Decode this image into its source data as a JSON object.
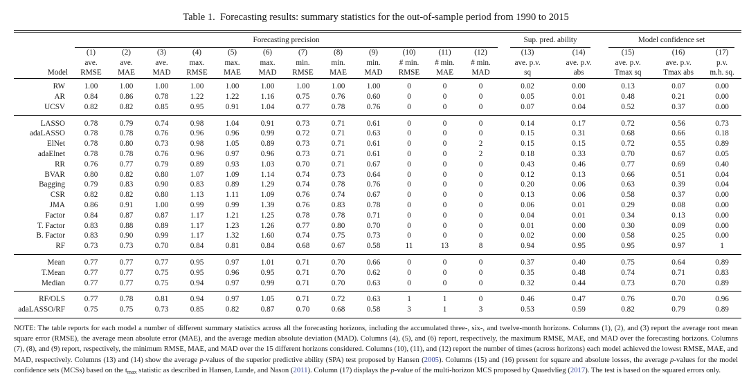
{
  "title": "Table 1.  Forecasting results: summary statistics for the out-of-sample period from 1990 to 2015",
  "colors": {
    "citation": "#3647a3",
    "rule": "#000000",
    "text": "#1b1b1b"
  },
  "table": {
    "model_header": "Model",
    "groups": [
      {
        "label": "Forecasting precision",
        "span": 12
      },
      {
        "label": "Sup. pred. ability",
        "span": 2
      },
      {
        "label": "Model confidence set",
        "span": 3
      }
    ],
    "columns": [
      {
        "num": "(1)",
        "l1": "ave.",
        "l2": "RMSE"
      },
      {
        "num": "(2)",
        "l1": "ave.",
        "l2": "MAE"
      },
      {
        "num": "(3)",
        "l1": "ave.",
        "l2": "MAD"
      },
      {
        "num": "(4)",
        "l1": "max.",
        "l2": "RMSE"
      },
      {
        "num": "(5)",
        "l1": "max.",
        "l2": "MAE"
      },
      {
        "num": "(6)",
        "l1": "max.",
        "l2": "MAD"
      },
      {
        "num": "(7)",
        "l1": "min.",
        "l2": "RMSE"
      },
      {
        "num": "(8)",
        "l1": "min.",
        "l2": "MAE"
      },
      {
        "num": "(9)",
        "l1": "min.",
        "l2": "MAD"
      },
      {
        "num": "(10)",
        "l1": "# min.",
        "l2": "RMSE"
      },
      {
        "num": "(11)",
        "l1": "# min.",
        "l2": "MAE"
      },
      {
        "num": "(12)",
        "l1": "# min.",
        "l2": "MAD"
      },
      {
        "num": "(13)",
        "l1": "ave. p.v.",
        "l2": "sq"
      },
      {
        "num": "(14)",
        "l1": "ave. p.v.",
        "l2": "abs"
      },
      {
        "num": "(15)",
        "l1": "ave. p.v.",
        "l2": "Tmax sq"
      },
      {
        "num": "(16)",
        "l1": "ave. p.v.",
        "l2": "Tmax abs"
      },
      {
        "num": "(17)",
        "l1": "p.v.",
        "l2": "m.h. sq."
      }
    ],
    "row_groups": [
      {
        "rows": [
          {
            "model": "RW",
            "values": [
              "1.00",
              "1.00",
              "1.00",
              "1.00",
              "1.00",
              "1.00",
              "1.00",
              "1.00",
              "1.00",
              "0",
              "0",
              "0",
              "0.02",
              "0.00",
              "0.13",
              "0.07",
              "0.00"
            ]
          },
          {
            "model": "AR",
            "values": [
              "0.84",
              "0.86",
              "0.78",
              "1.22",
              "1.22",
              "1.16",
              "0.75",
              "0.76",
              "0.60",
              "0",
              "0",
              "0",
              "0.05",
              "0.01",
              "0.48",
              "0.21",
              "0.00"
            ]
          },
          {
            "model": "UCSV",
            "values": [
              "0.82",
              "0.82",
              "0.85",
              "0.95",
              "0.91",
              "1.04",
              "0.77",
              "0.78",
              "0.76",
              "0",
              "0",
              "0",
              "0.07",
              "0.04",
              "0.52",
              "0.37",
              "0.00"
            ]
          }
        ]
      },
      {
        "rows": [
          {
            "model": "LASSO",
            "values": [
              "0.78",
              "0.79",
              "0.74",
              "0.98",
              "1.04",
              "0.91",
              "0.73",
              "0.71",
              "0.61",
              "0",
              "0",
              "0",
              "0.14",
              "0.17",
              "0.72",
              "0.56",
              "0.73"
            ]
          },
          {
            "model": "adaLASSO",
            "values": [
              "0.78",
              "0.78",
              "0.76",
              "0.96",
              "0.96",
              "0.99",
              "0.72",
              "0.71",
              "0.63",
              "0",
              "0",
              "0",
              "0.15",
              "0.31",
              "0.68",
              "0.66",
              "0.18"
            ]
          },
          {
            "model": "ElNet",
            "values": [
              "0.78",
              "0.80",
              "0.73",
              "0.98",
              "1.05",
              "0.89",
              "0.73",
              "0.71",
              "0.61",
              "0",
              "0",
              "2",
              "0.15",
              "0.15",
              "0.72",
              "0.55",
              "0.89"
            ]
          },
          {
            "model": "adaElnet",
            "values": [
              "0.78",
              "0.78",
              "0.76",
              "0.96",
              "0.97",
              "0.96",
              "0.73",
              "0.71",
              "0.61",
              "0",
              "0",
              "2",
              "0.18",
              "0.33",
              "0.70",
              "0.67",
              "0.05"
            ]
          },
          {
            "model": "RR",
            "values": [
              "0.76",
              "0.77",
              "0.79",
              "0.89",
              "0.93",
              "1.03",
              "0.70",
              "0.71",
              "0.67",
              "0",
              "0",
              "0",
              "0.43",
              "0.46",
              "0.77",
              "0.69",
              "0.40"
            ]
          },
          {
            "model": "BVAR",
            "values": [
              "0.80",
              "0.82",
              "0.80",
              "1.07",
              "1.09",
              "1.14",
              "0.74",
              "0.73",
              "0.64",
              "0",
              "0",
              "0",
              "0.12",
              "0.13",
              "0.66",
              "0.51",
              "0.04"
            ]
          },
          {
            "model": "Bagging",
            "values": [
              "0.79",
              "0.83",
              "0.90",
              "0.83",
              "0.89",
              "1.29",
              "0.74",
              "0.78",
              "0.76",
              "0",
              "0",
              "0",
              "0.20",
              "0.06",
              "0.63",
              "0.39",
              "0.04"
            ]
          },
          {
            "model": "CSR",
            "values": [
              "0.82",
              "0.82",
              "0.80",
              "1.13",
              "1.11",
              "1.09",
              "0.76",
              "0.74",
              "0.67",
              "0",
              "0",
              "0",
              "0.13",
              "0.06",
              "0.58",
              "0.37",
              "0.00"
            ]
          },
          {
            "model": "JMA",
            "values": [
              "0.86",
              "0.91",
              "1.00",
              "0.99",
              "0.99",
              "1.39",
              "0.76",
              "0.83",
              "0.78",
              "0",
              "0",
              "0",
              "0.06",
              "0.01",
              "0.29",
              "0.08",
              "0.00"
            ]
          },
          {
            "model": "Factor",
            "values": [
              "0.84",
              "0.87",
              "0.87",
              "1.17",
              "1.21",
              "1.25",
              "0.78",
              "0.78",
              "0.71",
              "0",
              "0",
              "0",
              "0.04",
              "0.01",
              "0.34",
              "0.13",
              "0.00"
            ]
          },
          {
            "model": "T. Factor",
            "values": [
              "0.83",
              "0.88",
              "0.89",
              "1.17",
              "1.23",
              "1.26",
              "0.77",
              "0.80",
              "0.70",
              "0",
              "0",
              "0",
              "0.01",
              "0.00",
              "0.30",
              "0.09",
              "0.00"
            ]
          },
          {
            "model": "B. Factor",
            "values": [
              "0.83",
              "0.90",
              "0.99",
              "1.17",
              "1.32",
              "1.60",
              "0.74",
              "0.75",
              "0.73",
              "0",
              "0",
              "0",
              "0.02",
              "0.00",
              "0.58",
              "0.25",
              "0.00"
            ]
          },
          {
            "model": "RF",
            "values": [
              "0.73",
              "0.73",
              "0.70",
              "0.84",
              "0.81",
              "0.84",
              "0.68",
              "0.67",
              "0.58",
              "11",
              "13",
              "8",
              "0.94",
              "0.95",
              "0.95",
              "0.97",
              "1"
            ]
          }
        ]
      },
      {
        "rows": [
          {
            "model": "Mean",
            "values": [
              "0.77",
              "0.77",
              "0.77",
              "0.95",
              "0.97",
              "1.01",
              "0.71",
              "0.70",
              "0.66",
              "0",
              "0",
              "0",
              "0.37",
              "0.40",
              "0.75",
              "0.64",
              "0.89"
            ]
          },
          {
            "model": "T.Mean",
            "values": [
              "0.77",
              "0.77",
              "0.75",
              "0.95",
              "0.96",
              "0.95",
              "0.71",
              "0.70",
              "0.62",
              "0",
              "0",
              "0",
              "0.35",
              "0.48",
              "0.74",
              "0.71",
              "0.83"
            ]
          },
          {
            "model": "Median",
            "values": [
              "0.77",
              "0.77",
              "0.75",
              "0.94",
              "0.97",
              "0.99",
              "0.71",
              "0.70",
              "0.63",
              "0",
              "0",
              "0",
              "0.32",
              "0.44",
              "0.73",
              "0.70",
              "0.89"
            ]
          }
        ]
      },
      {
        "rows": [
          {
            "model": "RF/OLS",
            "values": [
              "0.77",
              "0.78",
              "0.81",
              "0.94",
              "0.97",
              "1.05",
              "0.71",
              "0.72",
              "0.63",
              "1",
              "1",
              "0",
              "0.46",
              "0.47",
              "0.76",
              "0.70",
              "0.96"
            ]
          },
          {
            "model": "adaLASSO/RF",
            "values": [
              "0.75",
              "0.75",
              "0.73",
              "0.85",
              "0.82",
              "0.87",
              "0.70",
              "0.68",
              "0.58",
              "3",
              "1",
              "3",
              "0.53",
              "0.59",
              "0.82",
              "0.79",
              "0.89"
            ]
          }
        ]
      }
    ]
  },
  "note": {
    "runs": [
      {
        "t": "NOTE: The table reports for each model a number of different summary statistics across all the forecasting horizons, including the accumulated three-, six-, and twelve-month horizons. Columns (1), (2), and (3) report the average root mean square error (RMSE), the average mean absolute error (MAE), and the average median absolute deviation (MAD). Columns (4), (5), and (6) report, respectively, the maximum RMSE, MAE, and MAD over the forecasting horizons. Columns (7), (8), and (9) report, respectively, the minimum RMSE, MAE, and MAD over the 15 different horizons considered. Columns (10), (11), and (12) report the number of times (across horizons) each model achieved the lowest RMSE, MAE, and MAD, respectively. Columns (13) and (14) show the average "
      },
      {
        "t": "p",
        "s": "i"
      },
      {
        "t": "-values of the superior predictive ability (SPA) test proposed by Hansen ("
      },
      {
        "t": "2005",
        "s": "cite"
      },
      {
        "t": "). Columns (15) and (16) present for square and absolute losses, the average "
      },
      {
        "t": "p",
        "s": "i"
      },
      {
        "t": "-values for the model confidence sets (MCSs) based on the t"
      },
      {
        "t": "max",
        "s": "sub"
      },
      {
        "t": " statistic as described in Hansen, Lunde, and Nason ("
      },
      {
        "t": "2011",
        "s": "cite"
      },
      {
        "t": "). Column (17) displays the "
      },
      {
        "t": "p",
        "s": "i"
      },
      {
        "t": "-value of the multi-horizon MCS proposed by Quaedvlieg ("
      },
      {
        "t": "2017",
        "s": "cite"
      },
      {
        "t": "). The test is based on the squared errors only."
      }
    ]
  }
}
